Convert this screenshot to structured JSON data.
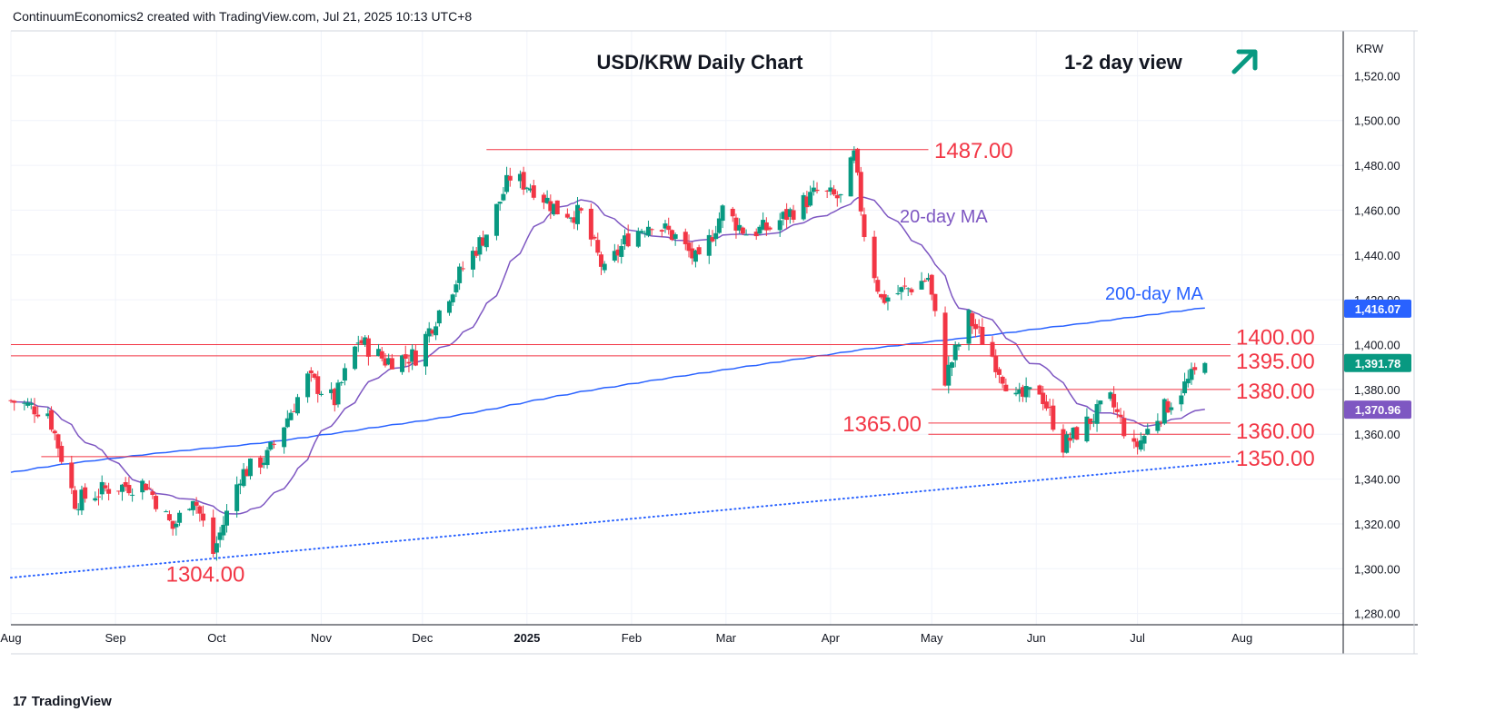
{
  "header": {
    "attribution": "ContinuumEconomics2 created with TradingView.com, Jul 21, 2025 10:13 UTC+8"
  },
  "footer": {
    "brand": "TradingView"
  },
  "colors": {
    "up": "#089981",
    "down": "#f23645",
    "ma20": "#7e57c2",
    "ma200": "#2962ff",
    "level": "#f23645",
    "arrow": "#089981",
    "grid": "#f0f3fa"
  },
  "chart_data": {
    "type": "candlestick",
    "title": "USD/KRW Daily Chart",
    "view_label": "1-2 day view",
    "view_direction": "up",
    "currency": "KRW",
    "y_axis": {
      "min": 1275,
      "max": 1540,
      "ticks": [
        "1,520.00",
        "1,500.00",
        "1,480.00",
        "1,460.00",
        "1,440.00",
        "1,420.00",
        "1,400.00",
        "1,380.00",
        "1,360.00",
        "1,340.00",
        "1,320.00",
        "1,300.00",
        "1,280.00"
      ],
      "tick_values": [
        1520,
        1500,
        1480,
        1460,
        1440,
        1420,
        1400,
        1380,
        1360,
        1340,
        1320,
        1300,
        1280
      ]
    },
    "x_axis": {
      "ticks": [
        "Aug",
        "Sep",
        "Oct",
        "Nov",
        "Dec",
        "2025",
        "Feb",
        "Mar",
        "Apr",
        "May",
        "Jun",
        "Jul",
        "Aug"
      ],
      "tick_dates": [
        "2024-08-01",
        "2024-09-01",
        "2024-10-01",
        "2024-11-01",
        "2024-12-01",
        "2025-01-01",
        "2025-02-01",
        "2025-03-01",
        "2025-04-01",
        "2025-05-01",
        "2025-06-01",
        "2025-07-01",
        "2025-08-01"
      ],
      "start": "2024-08-01",
      "end": "2025-08-31"
    },
    "price_badges": [
      {
        "label": "1,416.07",
        "value": 1416.07,
        "color": "#2962ff"
      },
      {
        "label": "1,391.78",
        "value": 1391.78,
        "color": "#089981"
      },
      {
        "label": "1,370.96",
        "value": 1370.96,
        "color": "#7e57c2"
      }
    ],
    "levels": [
      {
        "label": "1487.00",
        "value": 1487,
        "from": "2024-12-20",
        "to": "2025-04-30"
      },
      {
        "label": "1400.00",
        "value": 1400,
        "from": "2024-08-01",
        "to": "2025-07-31"
      },
      {
        "label": "1395.00",
        "value": 1395,
        "from": "2024-08-01",
        "to": "2025-07-31"
      },
      {
        "label": "1380.00",
        "value": 1380,
        "from": "2025-05-01",
        "to": "2025-07-31"
      },
      {
        "label": "1365.00",
        "value": 1365,
        "from": "2025-04-30",
        "to": "2025-07-31"
      },
      {
        "label": "1360.00",
        "value": 1360,
        "from": "2025-04-30",
        "to": "2025-07-31"
      },
      {
        "label": "1350.00",
        "value": 1350,
        "from": "2024-08-10",
        "to": "2025-07-31"
      },
      {
        "label": "1304.00",
        "value": 1304,
        "from": "2024-09-28",
        "to": "2024-09-28"
      }
    ],
    "annotations": [
      {
        "text": "20-day MA",
        "series": "ma20"
      },
      {
        "text": "200-day MA",
        "series": "ma200"
      }
    ],
    "trendline": {
      "style": "dotted",
      "points": [
        {
          "date": "2024-08-01",
          "value": 1296
        },
        {
          "date": "2025-07-31",
          "value": 1348
        }
      ]
    },
    "ohlc_anchors": [
      {
        "date": "2024-08-01",
        "close": 1375
      },
      {
        "date": "2024-08-12",
        "close": 1370
      },
      {
        "date": "2024-08-20",
        "close": 1330
      },
      {
        "date": "2024-08-30",
        "close": 1336
      },
      {
        "date": "2024-09-10",
        "close": 1338
      },
      {
        "date": "2024-09-18",
        "close": 1318
      },
      {
        "date": "2024-09-24",
        "close": 1333
      },
      {
        "date": "2024-09-30",
        "close": 1307
      },
      {
        "date": "2024-10-08",
        "close": 1342
      },
      {
        "date": "2024-10-16",
        "close": 1350
      },
      {
        "date": "2024-10-28",
        "close": 1385
      },
      {
        "date": "2024-11-05",
        "close": 1375
      },
      {
        "date": "2024-11-12",
        "close": 1402
      },
      {
        "date": "2024-11-20",
        "close": 1393
      },
      {
        "date": "2024-11-29",
        "close": 1395
      },
      {
        "date": "2024-12-06",
        "close": 1415
      },
      {
        "date": "2024-12-13",
        "close": 1434
      },
      {
        "date": "2024-12-20",
        "close": 1450
      },
      {
        "date": "2024-12-27",
        "close": 1475
      },
      {
        "date": "2025-01-03",
        "close": 1470
      },
      {
        "date": "2025-01-10",
        "close": 1460
      },
      {
        "date": "2025-01-17",
        "close": 1458
      },
      {
        "date": "2025-01-24",
        "close": 1432
      },
      {
        "date": "2025-01-31",
        "close": 1448
      },
      {
        "date": "2025-02-07",
        "close": 1455
      },
      {
        "date": "2025-02-14",
        "close": 1448
      },
      {
        "date": "2025-02-21",
        "close": 1436
      },
      {
        "date": "2025-02-28",
        "close": 1460
      },
      {
        "date": "2025-03-07",
        "close": 1450
      },
      {
        "date": "2025-03-14",
        "close": 1452
      },
      {
        "date": "2025-03-21",
        "close": 1460
      },
      {
        "date": "2025-03-28",
        "close": 1468
      },
      {
        "date": "2025-04-04",
        "close": 1465
      },
      {
        "date": "2025-04-08",
        "close": 1484
      },
      {
        "date": "2025-04-11",
        "close": 1450
      },
      {
        "date": "2025-04-16",
        "close": 1420
      },
      {
        "date": "2025-04-24",
        "close": 1425
      },
      {
        "date": "2025-04-30",
        "close": 1430
      },
      {
        "date": "2025-05-05",
        "close": 1385
      },
      {
        "date": "2025-05-12",
        "close": 1412
      },
      {
        "date": "2025-05-19",
        "close": 1395
      },
      {
        "date": "2025-05-26",
        "close": 1375
      },
      {
        "date": "2025-06-02",
        "close": 1380
      },
      {
        "date": "2025-06-09",
        "close": 1355
      },
      {
        "date": "2025-06-16",
        "close": 1365
      },
      {
        "date": "2025-06-23",
        "close": 1375
      },
      {
        "date": "2025-06-30",
        "close": 1353
      },
      {
        "date": "2025-07-07",
        "close": 1368
      },
      {
        "date": "2025-07-14",
        "close": 1380
      },
      {
        "date": "2025-07-21",
        "close": 1392
      }
    ]
  }
}
